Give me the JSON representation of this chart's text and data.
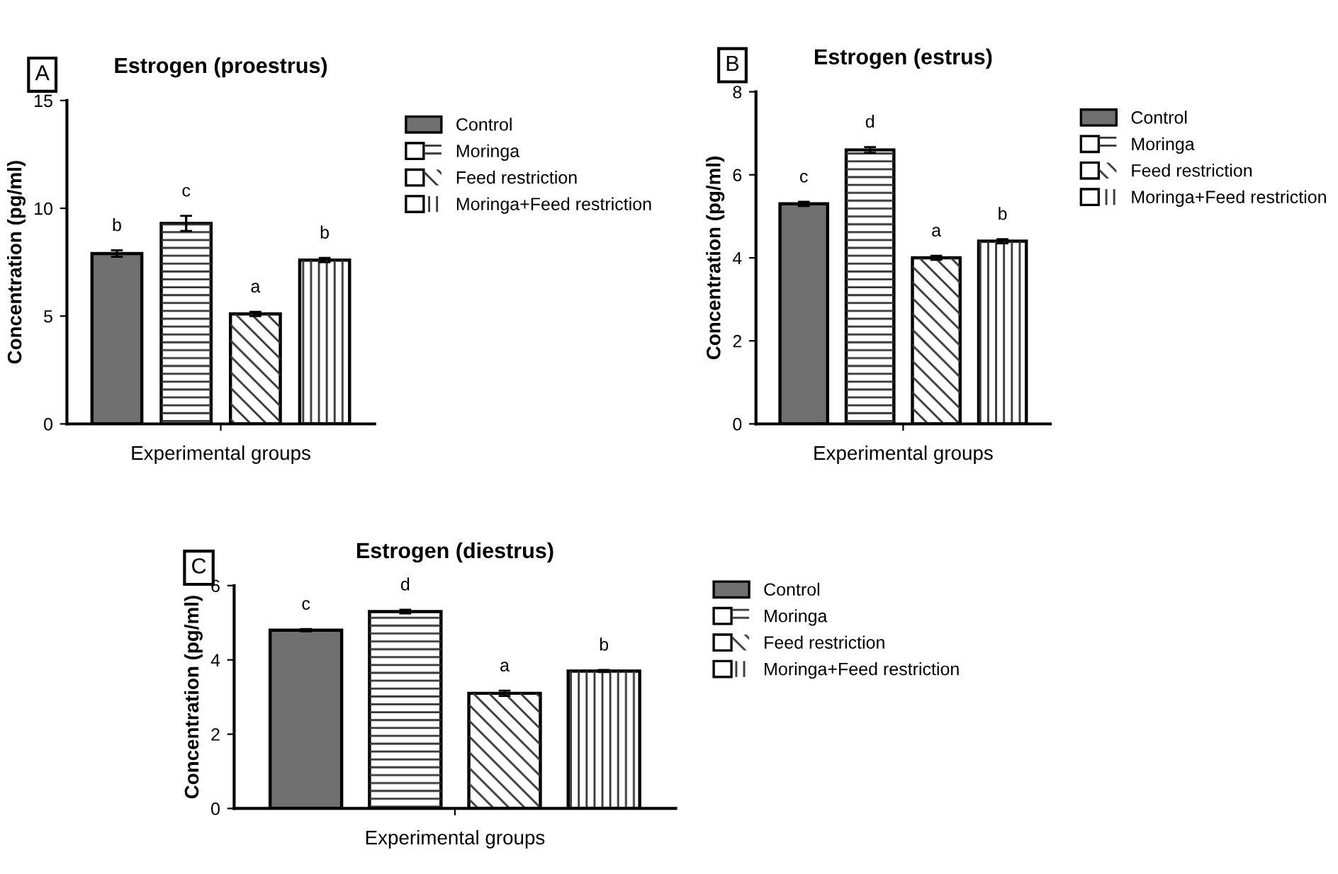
{
  "chart_data": [
    {
      "type": "bar",
      "title": "Estrogen (proestrus)",
      "annotations": [
        "A"
      ],
      "xlabel": "Experimental groups",
      "ylabel": "Concentration (pg/ml)",
      "categories": [
        null
      ],
      "ylim": [
        0,
        15
      ],
      "yticks": [
        0,
        5,
        10,
        15
      ],
      "legend": "right",
      "grid": false,
      "series": [
        {
          "name": "Control",
          "color": "#707070",
          "values": [
            7.9
          ],
          "errors": [
            0.15
          ],
          "value_labels": [
            "b"
          ]
        },
        {
          "name": "Moringa",
          "color": "#ffffff",
          "values": [
            9.3
          ],
          "errors": [
            0.35
          ],
          "value_labels": [
            "c"
          ]
        },
        {
          "name": "Feed restriction",
          "color": "#ffffff",
          "values": [
            5.1
          ],
          "errors": [
            0.1
          ],
          "value_labels": [
            "a"
          ]
        },
        {
          "name": "Moringa+Feed restriction",
          "color": "#ffffff",
          "values": [
            7.6
          ],
          "errors": [
            0.1
          ],
          "value_labels": [
            "b"
          ]
        }
      ]
    },
    {
      "type": "bar",
      "title": "Estrogen (estrus)",
      "annotations": [
        "B"
      ],
      "xlabel": "Experimental groups",
      "ylabel": "Concentration (pg/ml)",
      "categories": [
        null
      ],
      "ylim": [
        0,
        8
      ],
      "yticks": [
        0,
        2,
        4,
        6,
        8
      ],
      "legend": "right",
      "grid": false,
      "series": [
        {
          "name": "Control",
          "color": "#707070",
          "values": [
            5.3
          ],
          "errors": [
            0.05
          ],
          "value_labels": [
            "c"
          ]
        },
        {
          "name": "Moringa",
          "color": "#ffffff",
          "values": [
            6.6
          ],
          "errors": [
            0.07
          ],
          "value_labels": [
            "d"
          ]
        },
        {
          "name": "Feed restriction",
          "color": "#ffffff",
          "values": [
            4.0
          ],
          "errors": [
            0.05
          ],
          "value_labels": [
            "a"
          ]
        },
        {
          "name": "Moringa+Feed restriction",
          "color": "#ffffff",
          "values": [
            4.4
          ],
          "errors": [
            0.05
          ],
          "value_labels": [
            "b"
          ]
        }
      ]
    },
    {
      "type": "bar",
      "title": "Estrogen (diestrus)",
      "annotations": [
        "C"
      ],
      "xlabel": "Experimental groups",
      "ylabel": "Concentration (pg/ml)",
      "categories": [
        null
      ],
      "ylim": [
        0,
        6
      ],
      "yticks": [
        0,
        2,
        4,
        6
      ],
      "legend": "right",
      "grid": false,
      "series": [
        {
          "name": "Control",
          "color": "#707070",
          "values": [
            4.8
          ],
          "errors": [
            0.03
          ],
          "value_labels": [
            "c"
          ]
        },
        {
          "name": "Moringa",
          "color": "#ffffff",
          "values": [
            5.3
          ],
          "errors": [
            0.05
          ],
          "value_labels": [
            "d"
          ]
        },
        {
          "name": "Feed restriction",
          "color": "#ffffff",
          "values": [
            3.1
          ],
          "errors": [
            0.07
          ],
          "value_labels": [
            "a"
          ]
        },
        {
          "name": "Moringa+Feed restriction",
          "color": "#ffffff",
          "values": [
            3.7
          ],
          "errors": [
            0.03
          ],
          "value_labels": [
            "b"
          ]
        }
      ]
    }
  ]
}
